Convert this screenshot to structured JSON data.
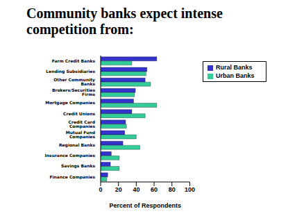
{
  "chart_data": {
    "type": "bar",
    "title": "Community banks expect intense competition from:",
    "orientation": "horizontal",
    "categories": [
      "Farm Credit Banks",
      "Lending Subsidiaries",
      "Other Community Banks",
      "Brokers/Securities Firms",
      "Mortgage Companies",
      "Credit Unions",
      "Credit Card Companies",
      "Mutual Fund Companies",
      "Regional Banks",
      "Insurance Companies",
      "Savings Banks",
      "Finance Companies"
    ],
    "series": [
      {
        "name": "Rural Banks",
        "color": "#3333cc",
        "values": [
          63,
          52,
          50,
          39,
          37,
          35,
          28,
          27,
          25,
          12,
          11,
          8
        ]
      },
      {
        "name": "Urban Banks",
        "color": "#33cc99",
        "values": [
          35,
          51,
          56,
          38,
          63,
          50,
          29,
          40,
          44,
          21,
          21,
          7
        ]
      }
    ],
    "x_label": "Percent of Respondents",
    "xlim": [
      0,
      100
    ],
    "xticks": [
      0,
      20,
      40,
      60,
      80,
      100
    ],
    "grid": false,
    "legend": "upper right"
  }
}
